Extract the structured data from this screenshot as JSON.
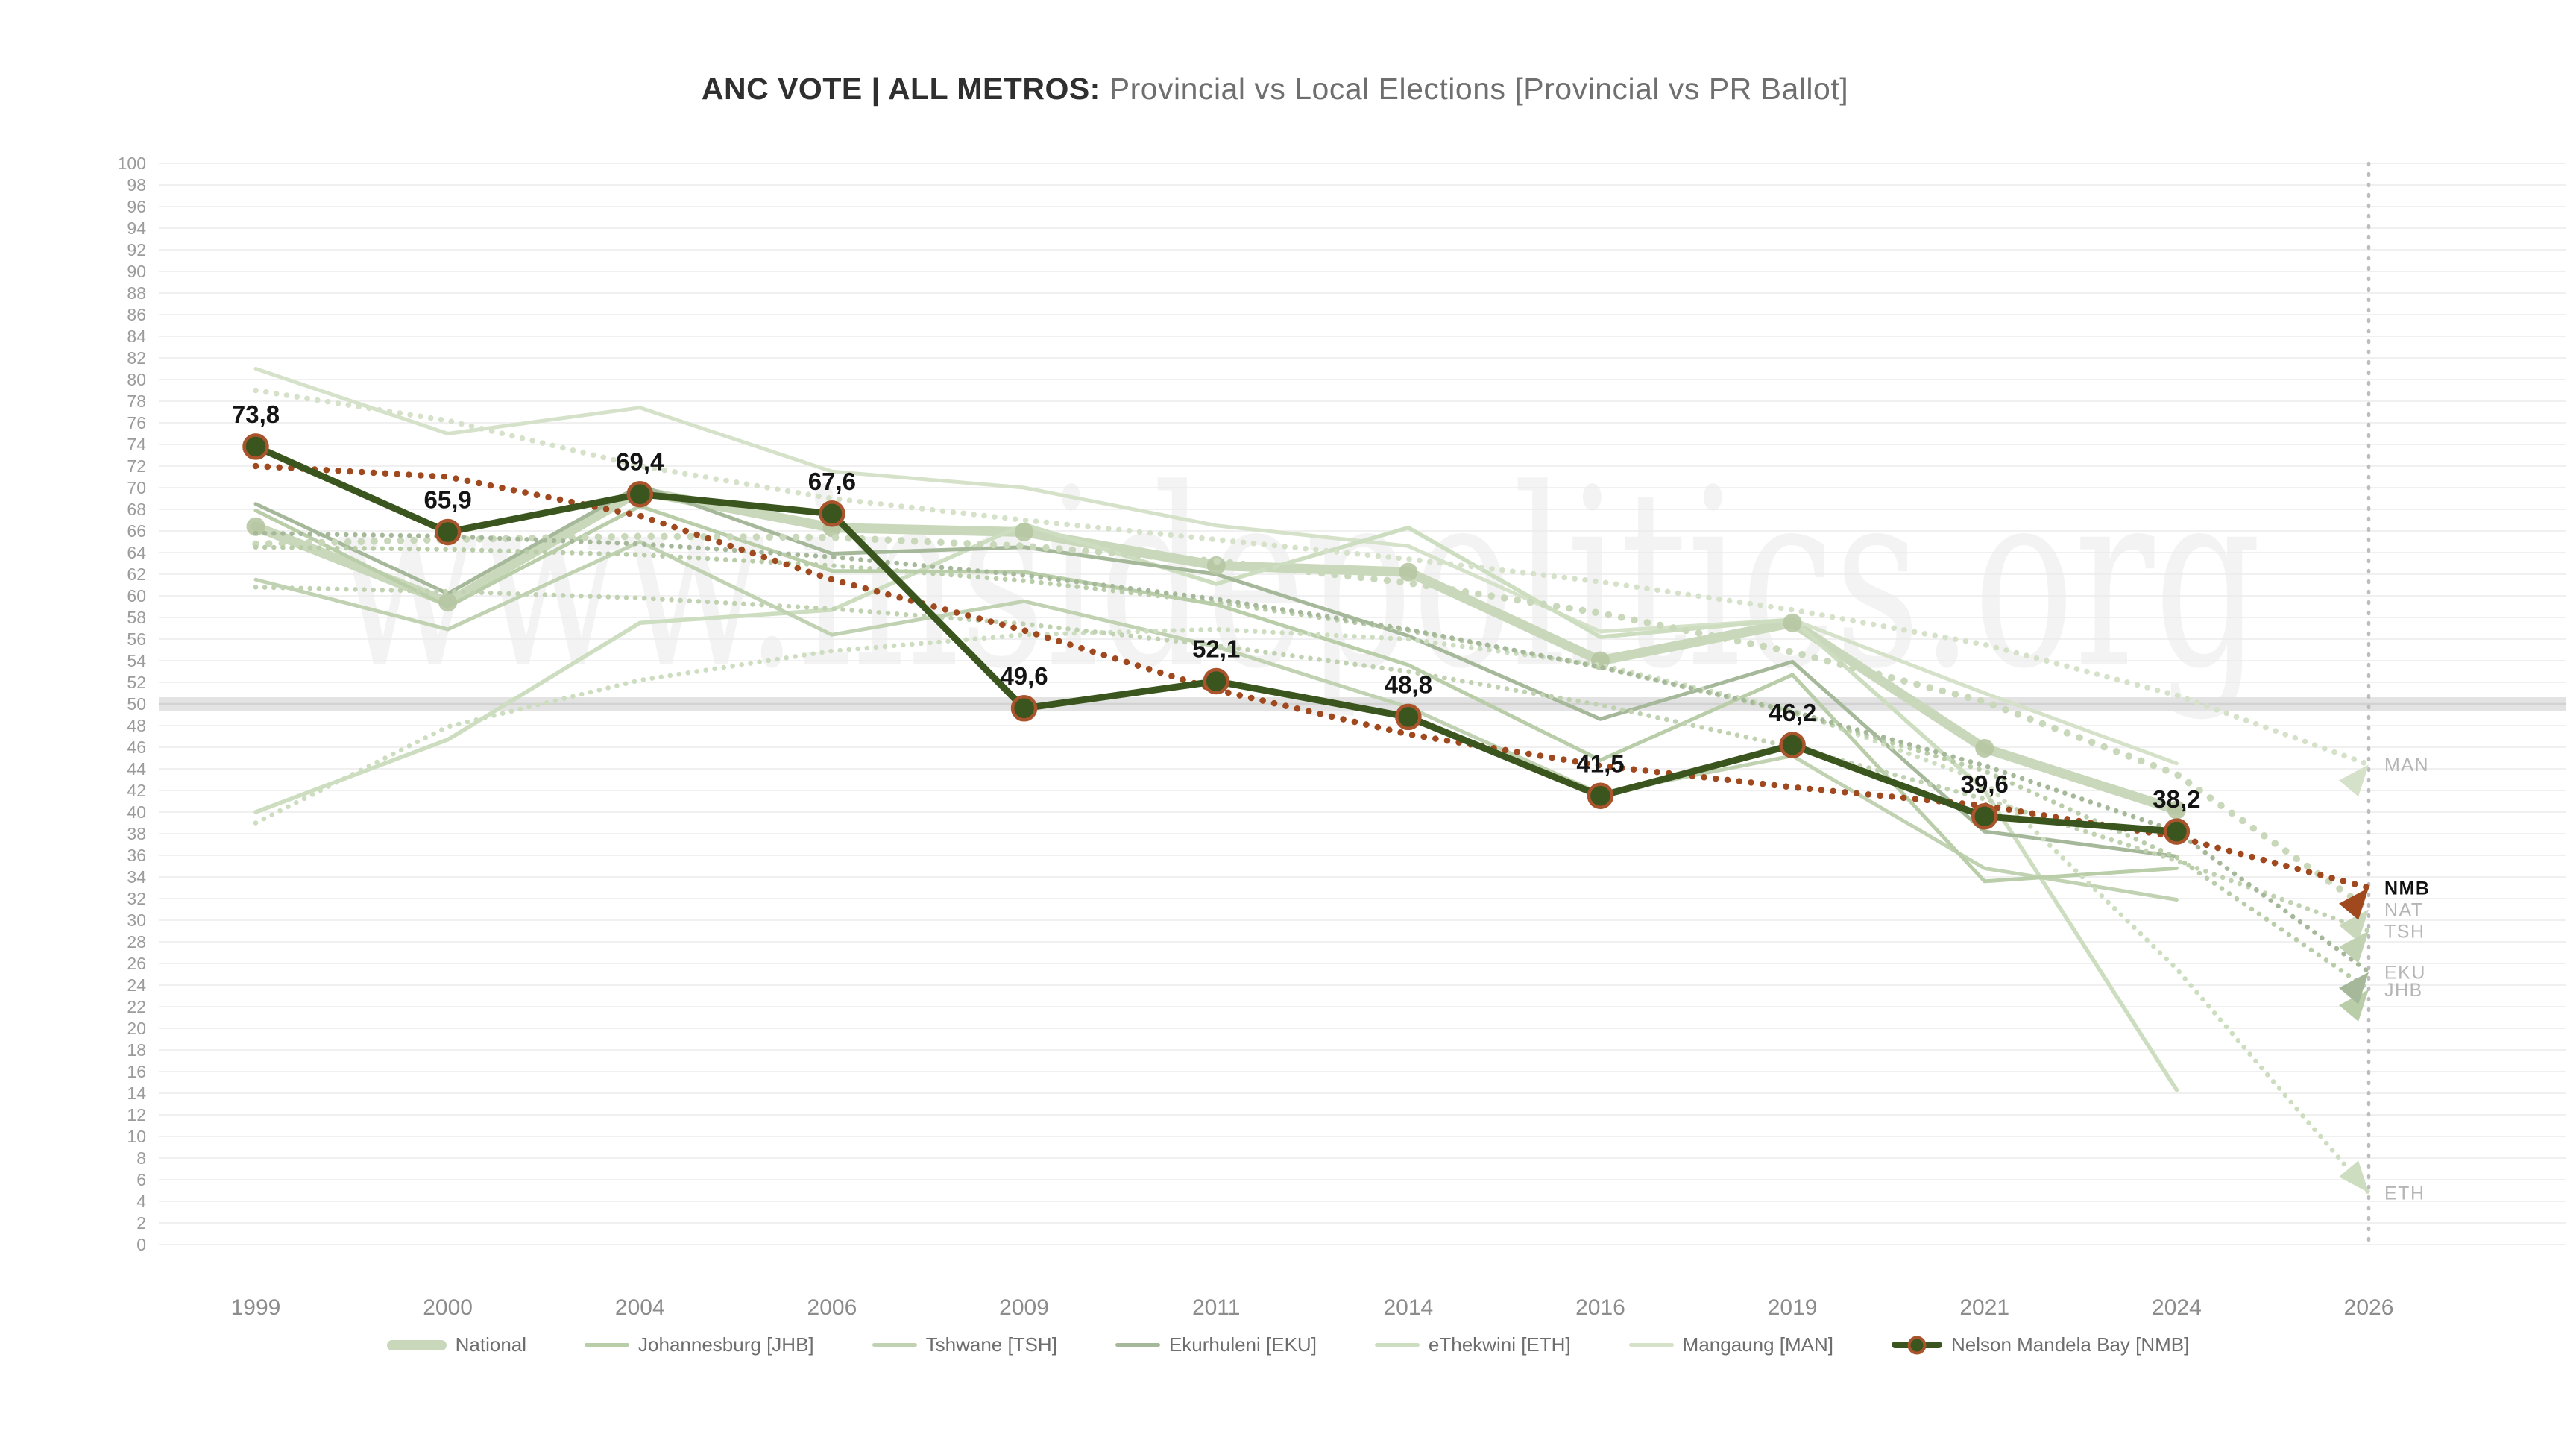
{
  "title": {
    "bold": "ANC VOTE | ALL METROS:",
    "rest": " Provincial vs Local Elections [Provincial vs PR Ballot]"
  },
  "watermark": "www.insidepolitics.org",
  "chart_data": {
    "type": "line",
    "categories": [
      "1999",
      "2000",
      "2004",
      "2006",
      "2009",
      "2011",
      "2014",
      "2016",
      "2019",
      "2021",
      "2024",
      "2026"
    ],
    "ylim": [
      0,
      100
    ],
    "y_step": 2,
    "highlight_band_value": 50,
    "grid": true,
    "legend_position": "bottom",
    "projection_column": "2026",
    "series": [
      {
        "code": "NAT",
        "name": "National",
        "color": "#c9d8ba",
        "width": 13,
        "marker_color": "#b6c7a2",
        "values": [
          66.4,
          59.4,
          69.7,
          66.3,
          65.9,
          62.8,
          62.2,
          54.0,
          57.5,
          45.9,
          40.2
        ],
        "trend": [
          64.8,
          65.2,
          65.5,
          65.4,
          64.6,
          63.2,
          61.2,
          58.4,
          54.8,
          50.2,
          43.5,
          31.0
        ],
        "trend_dot": 9.5,
        "end_label": "NAT",
        "end_value": 31.0
      },
      {
        "code": "MAN",
        "name": "Mangaung [MAN]",
        "color": "#d5e2c9",
        "width": 5,
        "values": [
          81.0,
          75.0,
          77.4,
          71.5,
          70.0,
          66.5,
          64.6,
          56.7,
          57.8,
          51.0,
          44.5
        ],
        "trend": [
          79.0,
          76.2,
          72.0,
          69.0,
          67.0,
          65.2,
          63.4,
          61.3,
          58.7,
          55.5,
          50.8,
          44.4
        ],
        "trend_dot": 7.5,
        "end_label": "MAN",
        "end_value": 44.4
      },
      {
        "code": "ETH",
        "name": "eThekwini [ETH]",
        "color": "#cdddc0",
        "width": 5.5,
        "values": [
          40.0,
          46.7,
          57.5,
          58.7,
          66.6,
          61.1,
          66.3,
          56.2,
          57.8,
          42.0,
          14.3
        ],
        "trend": [
          39.0,
          47.9,
          52.2,
          54.9,
          56.4,
          56.9,
          56.0,
          53.6,
          49.4,
          42.8,
          25.5,
          4.8
        ],
        "trend_dot": 6.5,
        "end_label": "ETH",
        "end_value": 4.8,
        "arrow_down": true
      },
      {
        "code": "TSH",
        "name": "Tshwane [TSH]",
        "color": "#c0d2b1",
        "width": 5,
        "values": [
          61.5,
          56.9,
          65.0,
          56.4,
          59.5,
          55.3,
          49.7,
          41.7,
          45.2,
          34.8,
          31.9
        ],
        "trend": [
          60.8,
          60.4,
          59.8,
          58.8,
          57.4,
          55.4,
          53.0,
          49.9,
          46.0,
          41.2,
          35.5,
          29.0
        ],
        "trend_dot": 6.5,
        "end_label": "TSH",
        "end_value": 29.0
      },
      {
        "code": "JHB",
        "name": "Johannesburg [JHB]",
        "color": "#b9cda9",
        "width": 5,
        "values": [
          67.9,
          59.0,
          68.3,
          62.3,
          62.2,
          59.2,
          53.6,
          44.8,
          52.7,
          33.6,
          34.8
        ],
        "trend": [
          64.5,
          64.3,
          63.8,
          62.8,
          61.4,
          59.4,
          56.8,
          53.4,
          49.2,
          43.8,
          35.8,
          23.6
        ],
        "trend_dot": 6.5,
        "end_label": "JHB",
        "end_value": 23.6
      },
      {
        "code": "EKU",
        "name": "Ekurhuleni [EKU]",
        "color": "#a6b89a",
        "width": 5,
        "values": [
          68.5,
          60.2,
          70.2,
          63.9,
          64.5,
          62.0,
          56.3,
          48.6,
          53.9,
          38.2,
          35.9
        ],
        "trend": [
          65.8,
          65.5,
          64.8,
          63.6,
          61.9,
          59.7,
          56.9,
          53.4,
          49.3,
          44.3,
          38.2,
          25.2
        ],
        "trend_dot": 6.5,
        "end_label": "EKU",
        "end_value": 25.2
      },
      {
        "code": "NMB",
        "name": "Nelson Mandela Bay [NMB]",
        "color": "#3a551d",
        "width": 9,
        "marker_ring": "#a9542c",
        "values": [
          73.8,
          65.9,
          69.4,
          67.6,
          49.6,
          52.1,
          48.8,
          41.5,
          46.2,
          39.6,
          38.2
        ],
        "point_labels": [
          "73,8",
          "65,9",
          "69,4",
          "67,6",
          "49,6",
          "52,1",
          "48,8",
          "41,5",
          "46,2",
          "39,6",
          "38,2"
        ],
        "trend": [
          72.0,
          71.0,
          67.4,
          61.5,
          56.8,
          51.3,
          47.2,
          44.3,
          42.3,
          40.6,
          37.7,
          33.0
        ],
        "trend_color": "#a0491f",
        "trend_dot": 8.5,
        "end_label": "NMB",
        "end_value": 33.0,
        "end_bold": true
      }
    ],
    "legend_order": [
      "NAT",
      "JHB",
      "TSH",
      "EKU",
      "ETH",
      "MAN",
      "NMB"
    ],
    "edge_label_color": "#b5b5b5",
    "edge_label_bold_color": "#111111"
  }
}
